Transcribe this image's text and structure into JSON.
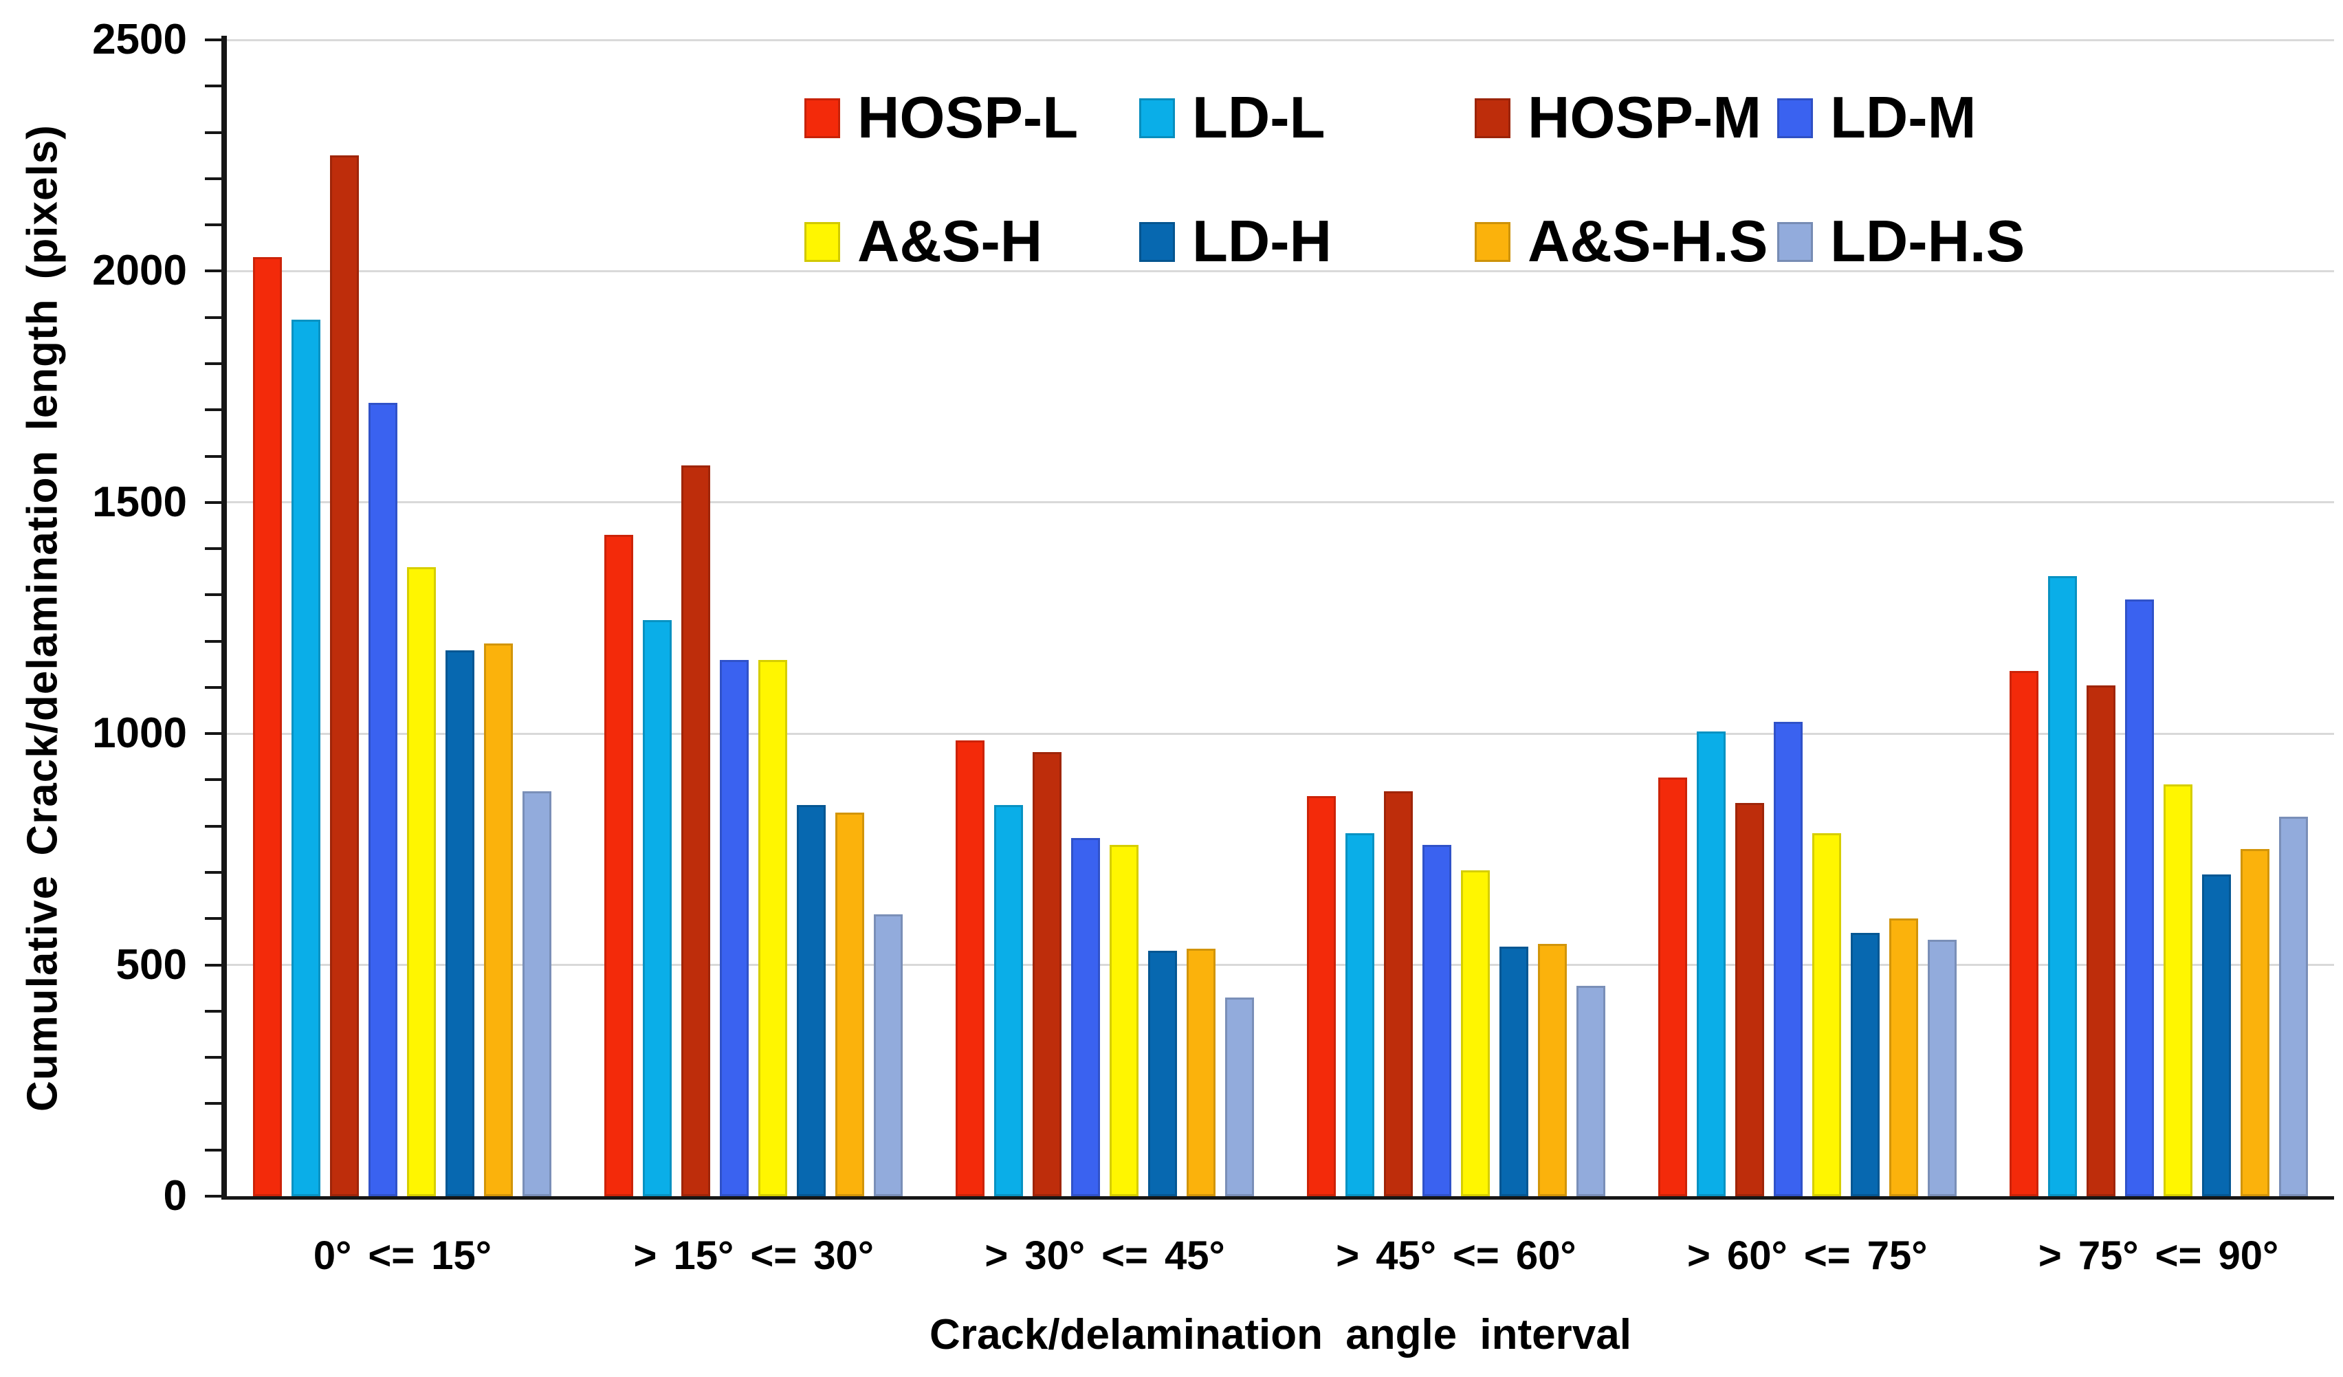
{
  "figure": {
    "background": "#ffffff",
    "axis_color": "#161616",
    "gridline_color": "#d9d9d9",
    "text_color": "#000000"
  },
  "chart_data": {
    "type": "bar",
    "title": "",
    "xlabel": "Crack/delamination  angle interval",
    "ylabel": "Cumulative Crack/delamination  length (pixels)",
    "categories": [
      "0° <= 15°",
      "> 15° <= 30°",
      "> 30° <= 45°",
      "> 45° <= 60°",
      "> 60° <= 75°",
      "> 75° <= 90°"
    ],
    "series": [
      {
        "name": "HOSP-L",
        "color": "#F32A0A",
        "values": [
          2030,
          1430,
          985,
          865,
          905,
          1135
        ]
      },
      {
        "name": "LD-L",
        "color": "#0AAEE8",
        "values": [
          1895,
          1245,
          845,
          785,
          1005,
          1340
        ]
      },
      {
        "name": "HOSP-M",
        "color": "#BE2D0B",
        "values": [
          2250,
          1580,
          960,
          875,
          850,
          1105
        ]
      },
      {
        "name": "LD-M",
        "color": "#3A62F0",
        "values": [
          1715,
          1160,
          775,
          760,
          1025,
          1290
        ]
      },
      {
        "name": "A&S-H",
        "color": "#FFF600",
        "values": [
          1360,
          1160,
          760,
          705,
          785,
          890
        ]
      },
      {
        "name": "LD-H",
        "color": "#0768B0",
        "values": [
          1180,
          845,
          530,
          540,
          570,
          695
        ]
      },
      {
        "name": "A&S-H.S",
        "color": "#FBB20C",
        "values": [
          1195,
          830,
          535,
          545,
          600,
          750
        ]
      },
      {
        "name": "LD-H.S",
        "color": "#92ABDC",
        "values": [
          875,
          610,
          430,
          455,
          555,
          820
        ]
      }
    ],
    "ylim": [
      0,
      2500
    ],
    "yticks": [
      0,
      500,
      1000,
      1500,
      2000,
      2500
    ],
    "y_minor_tick_step": 100,
    "grid": "horizontal-major",
    "legend_position": "top-center-inside",
    "legend_columns": 4
  }
}
